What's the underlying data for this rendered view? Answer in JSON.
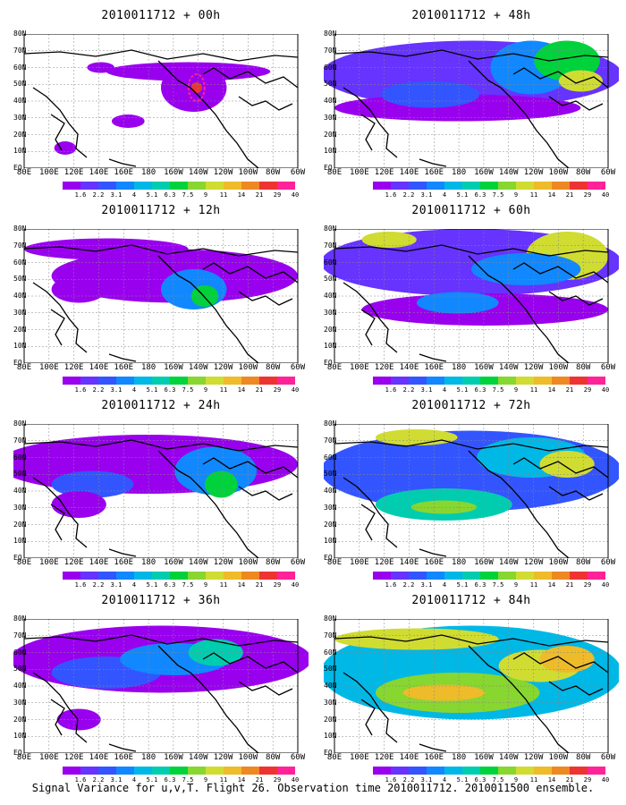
{
  "figure_caption": "Signal Variance for u,v,T. Flight 26. Observation time 2010011712. 2010011500 ensemble.",
  "x_tick_labels": [
    "80E",
    "100E",
    "120E",
    "140E",
    "160E",
    "180",
    "160W",
    "140W",
    "120W",
    "100W",
    "80W",
    "60W"
  ],
  "y_tick_labels": [
    "EQ",
    "10N",
    "20N",
    "30N",
    "40N",
    "50N",
    "60N",
    "70N",
    "80N"
  ],
  "colorbar": {
    "labels": [
      "1.6",
      "2.2",
      "3.1",
      "4",
      "5.1",
      "6.3",
      "7.5",
      "9",
      "11",
      "14",
      "21",
      "29",
      "40"
    ],
    "colors": [
      "#9900ee",
      "#6633ff",
      "#3355ff",
      "#1188ff",
      "#00b8e6",
      "#00cdb0",
      "#00d23c",
      "#88d630",
      "#d0dc32",
      "#eebb2a",
      "#ee8822",
      "#ee3333",
      "#ff2299"
    ]
  },
  "panels": [
    {
      "title": "2010011712 + 00h",
      "lead_hours": 0
    },
    {
      "title": "2010011712 + 48h",
      "lead_hours": 48
    },
    {
      "title": "2010011712 + 12h",
      "lead_hours": 12
    },
    {
      "title": "2010011712 + 60h",
      "lead_hours": 60
    },
    {
      "title": "2010011712 + 24h",
      "lead_hours": 24
    },
    {
      "title": "2010011712 + 72h",
      "lead_hours": 72
    },
    {
      "title": "2010011712 + 36h",
      "lead_hours": 36
    },
    {
      "title": "2010011712 + 84h",
      "lead_hours": 84
    }
  ]
}
